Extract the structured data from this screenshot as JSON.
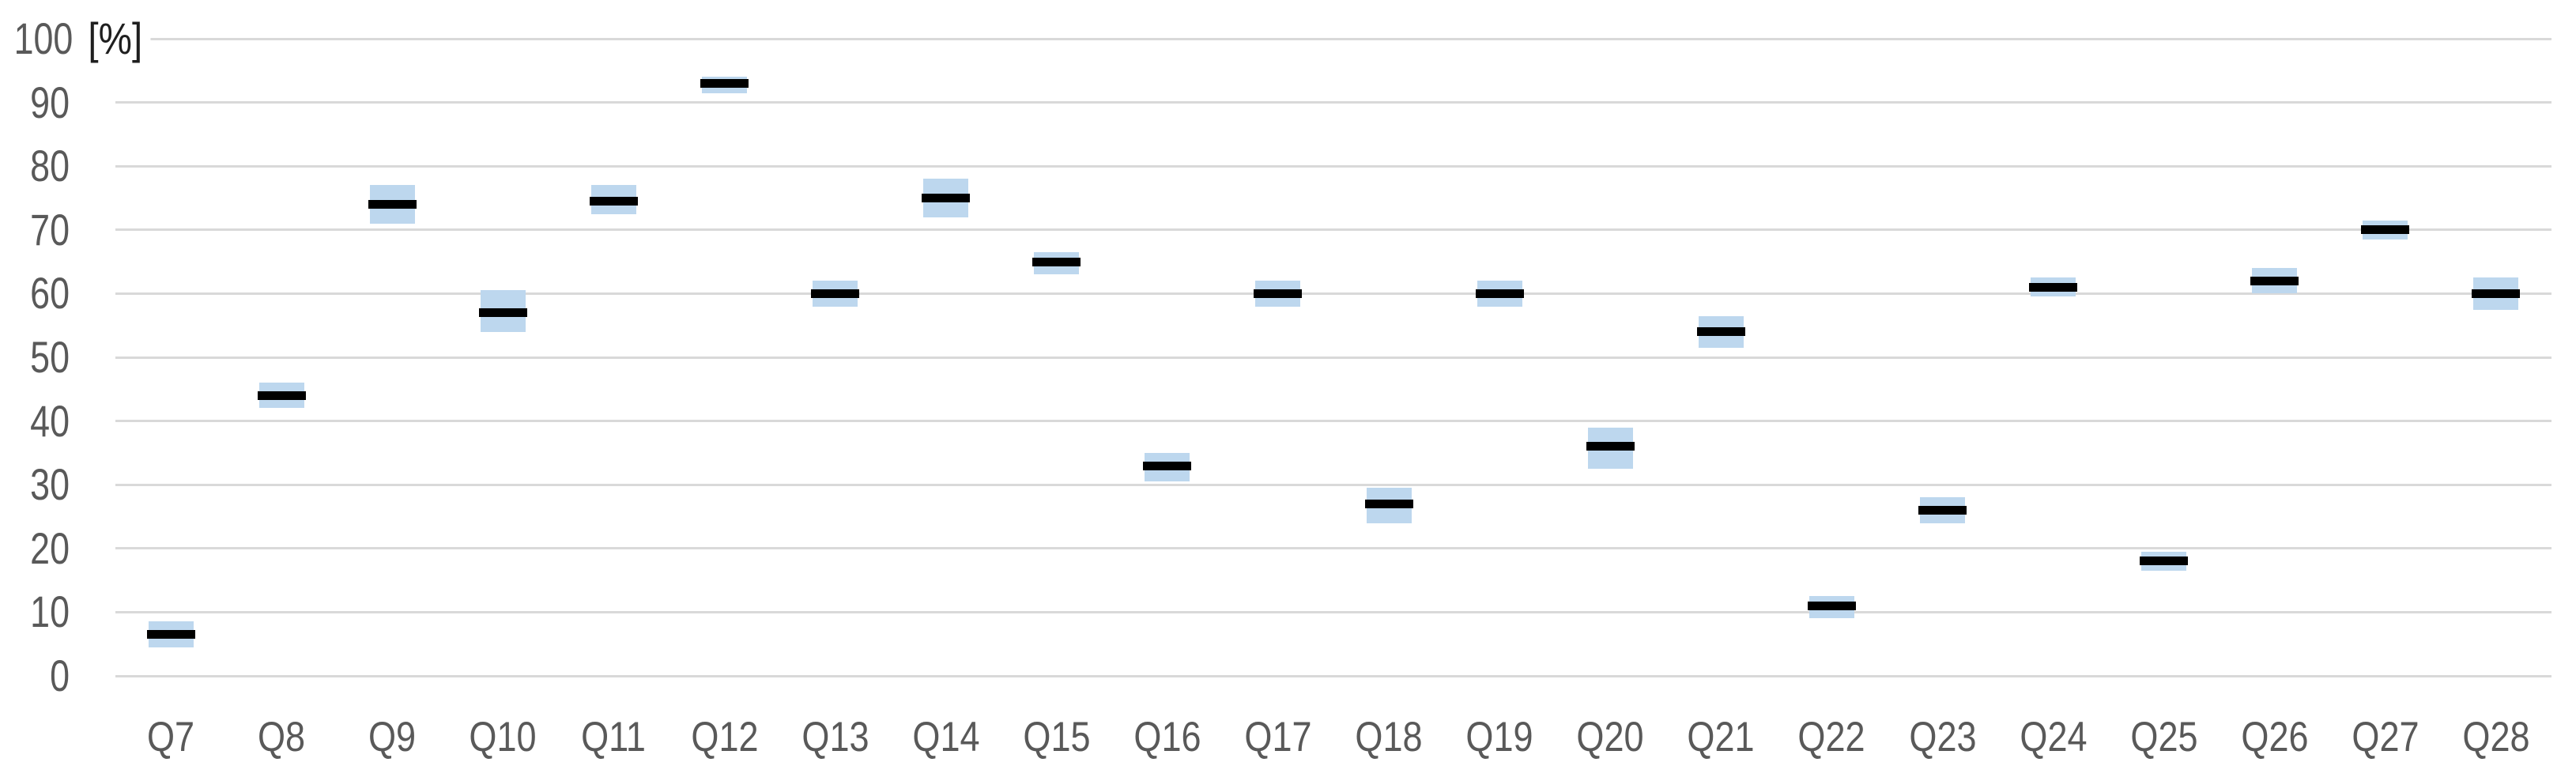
{
  "chart_data": {
    "type": "bar",
    "variant": "floating-range-boxes-with-value-markers",
    "title": "",
    "xlabel": "",
    "ylabel": "[%]",
    "ylim": [
      0,
      100
    ],
    "yticks": [
      0,
      10,
      20,
      30,
      40,
      50,
      60,
      70,
      80,
      90,
      100
    ],
    "grid": "horizontal",
    "legend": "none",
    "categories": [
      "Q7",
      "Q8",
      "Q9",
      "Q10",
      "Q11",
      "Q12",
      "Q13",
      "Q14",
      "Q15",
      "Q16",
      "Q17",
      "Q18",
      "Q19",
      "Q20",
      "Q21",
      "Q22",
      "Q23",
      "Q24",
      "Q25",
      "Q26",
      "Q27",
      "Q28"
    ],
    "series": [
      {
        "name": "value",
        "role": "black-marker",
        "values": [
          6.5,
          44,
          74,
          57,
          74.5,
          93,
          60,
          75,
          65,
          33,
          60,
          27,
          60,
          36,
          54,
          11,
          26,
          61,
          18,
          62,
          70,
          60
        ]
      },
      {
        "name": "range_low",
        "role": "box-bottom",
        "values": [
          4.5,
          42,
          71,
          54,
          72.5,
          91.5,
          58,
          72,
          63,
          30.5,
          58,
          24,
          58,
          32.5,
          51.5,
          9,
          24,
          59.5,
          16.5,
          60,
          68.5,
          57.5
        ]
      },
      {
        "name": "range_high",
        "role": "box-top",
        "values": [
          8.5,
          46,
          77,
          60.5,
          77,
          94,
          62,
          78,
          66.5,
          35,
          62,
          29.5,
          62,
          39,
          56.5,
          12.5,
          28,
          62.5,
          19.5,
          64,
          71.5,
          62.5
        ]
      }
    ],
    "colors": {
      "range_box": "#bdd7ee",
      "value_marker": "#000000",
      "gridline": "#d9d9d9",
      "tick_text": "#595959",
      "unit_text": "#1f1f1f",
      "background": "#ffffff"
    }
  }
}
